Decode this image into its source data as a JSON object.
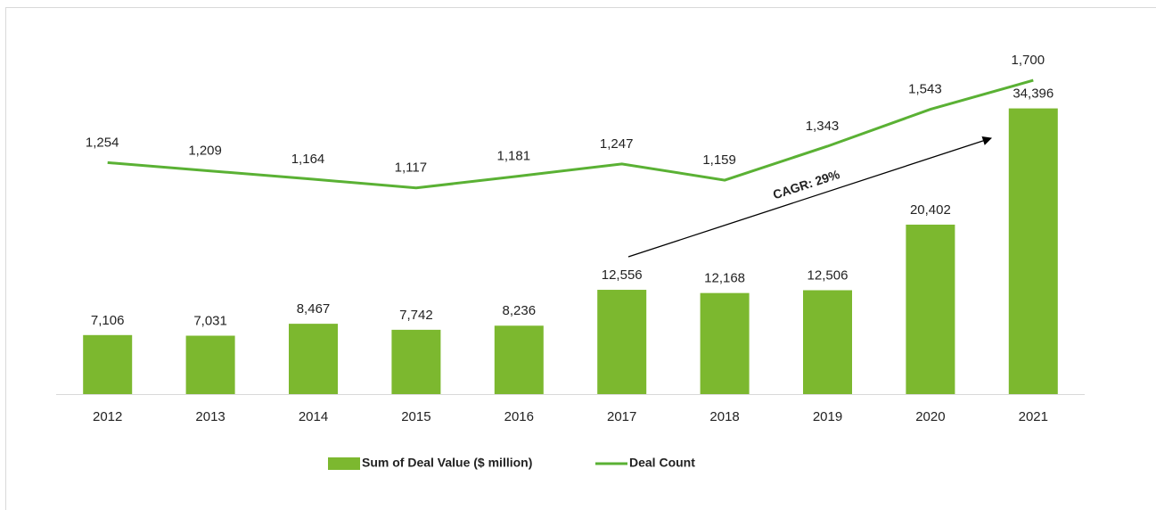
{
  "chart_data": {
    "type": "bar",
    "categories": [
      "2012",
      "2013",
      "2014",
      "2015",
      "2016",
      "2017",
      "2018",
      "2019",
      "2020",
      "2021"
    ],
    "series": [
      {
        "name": "Sum of Deal Value ($ million)",
        "type": "bar",
        "color": "#7cb82f",
        "values": [
          7106,
          7031,
          8467,
          7742,
          8236,
          12556,
          12168,
          12506,
          20402,
          34396
        ],
        "value_labels": [
          "7,106",
          "7,031",
          "8,467",
          "7,742",
          "8,236",
          "12,556",
          "12,168",
          "12,506",
          "20,402",
          "34,396"
        ]
      },
      {
        "name": "Deal Count",
        "type": "line",
        "axis": "y2",
        "color": "#5ab134",
        "values": [
          1254,
          1209,
          1164,
          1117,
          1181,
          1247,
          1159,
          1343,
          1543,
          1700
        ],
        "value_labels": [
          "1,254",
          "1,209",
          "1,164",
          "1,117",
          "1,181",
          "1,247",
          "1,159",
          "1,343",
          "1,543",
          "1,700"
        ]
      }
    ],
    "annotations": [
      "CAGR: 29%"
    ],
    "ylim": [
      0,
      38000
    ],
    "y2lim": [
      0,
      1710
    ],
    "legend": "bottom"
  }
}
